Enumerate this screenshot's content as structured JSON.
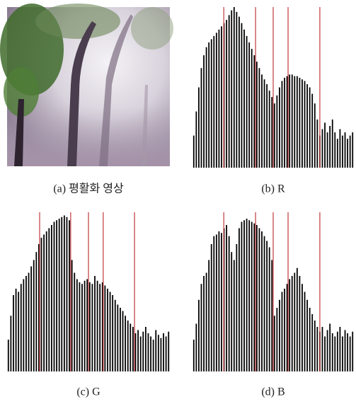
{
  "panels": [
    {
      "caption": "(a) 평활화 영상"
    },
    {
      "caption": "(b) R",
      "histogram": {
        "type": "bar",
        "color": "#000000",
        "marker_color": "#c0393b",
        "values": [
          20,
          35,
          50,
          62,
          70,
          75,
          78,
          80,
          82,
          84,
          86,
          88,
          90,
          92,
          95,
          98,
          100,
          97,
          94,
          90,
          86,
          82,
          78,
          74,
          70,
          66,
          62,
          58,
          55,
          52,
          48,
          44,
          40,
          45,
          50,
          54,
          56,
          57,
          58,
          58,
          57,
          57,
          56,
          55,
          54,
          52,
          50,
          46,
          40,
          30,
          20,
          24,
          28,
          22,
          26,
          30,
          22,
          18,
          24,
          20,
          22,
          18,
          20,
          22
        ],
        "markers": [
          12.4,
          25,
          32,
          37.9,
          50.5
        ]
      }
    },
    {
      "caption": "(c) G",
      "histogram": {
        "type": "bar",
        "color": "#000000",
        "marker_color": "#c0393b",
        "values": [
          20,
          35,
          48,
          52,
          50,
          55,
          58,
          60,
          62,
          66,
          70,
          75,
          80,
          84,
          86,
          88,
          90,
          92,
          94,
          95,
          96,
          97,
          98,
          97,
          95,
          70,
          62,
          58,
          56,
          55,
          57,
          58,
          56,
          55,
          60,
          57,
          55,
          56,
          54,
          52,
          50,
          48,
          45,
          42,
          40,
          38,
          35,
          32,
          30,
          28,
          24,
          26,
          22,
          25,
          28,
          24,
          22,
          20,
          26,
          23,
          21,
          24,
          22,
          25
        ],
        "markers": [
          12.8,
          25,
          32,
          37.8,
          50.1
        ]
      }
    },
    {
      "caption": "(d) B",
      "histogram": {
        "type": "bar",
        "color": "#000000",
        "marker_color": "#c0393b",
        "values": [
          20,
          30,
          45,
          55,
          60,
          62,
          70,
          80,
          85,
          86,
          88,
          87,
          90,
          92,
          85,
          75,
          70,
          80,
          90,
          94,
          95,
          96,
          95,
          94,
          93,
          92,
          90,
          88,
          85,
          82,
          78,
          70,
          35,
          40,
          45,
          50,
          52,
          55,
          58,
          60,
          62,
          65,
          60,
          55,
          50,
          45,
          40,
          36,
          32,
          28,
          25,
          28,
          22,
          26,
          30,
          24,
          22,
          25,
          28,
          22,
          26,
          24,
          22,
          25
        ],
        "markers": [
          12.4,
          25,
          32,
          37.9,
          50.5
        ]
      }
    }
  ]
}
